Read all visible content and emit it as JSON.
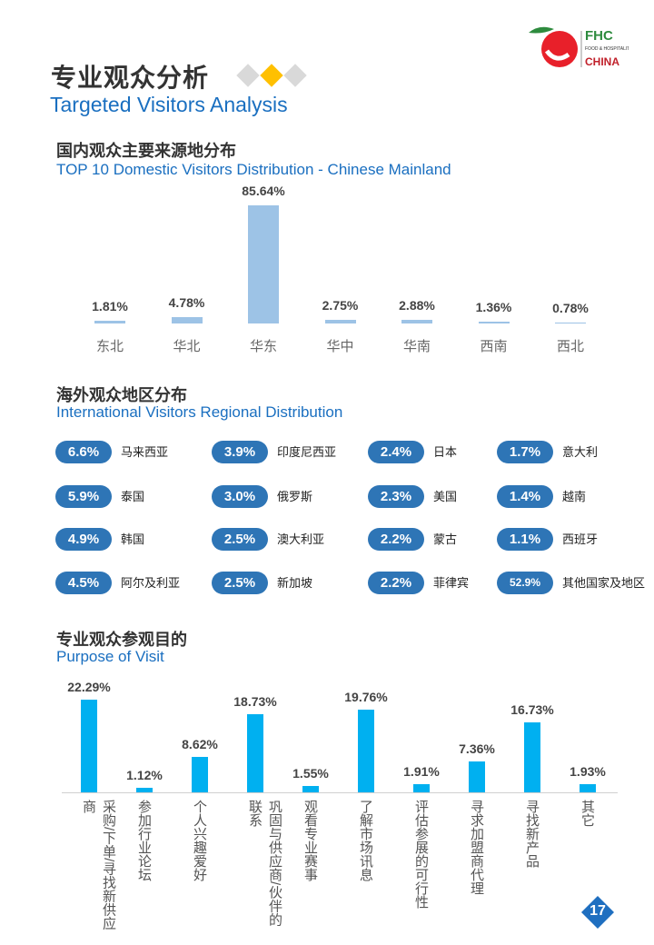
{
  "header": {
    "title_cn": "专业观众分析",
    "title_en": "Targeted Visitors Analysis",
    "logo_text": "FHC FOOD & HOSPITALITY CHINA"
  },
  "colors": {
    "accent": "#1a6fc0",
    "pill": "#2e75b6",
    "bar_domestic": "#9dc3e6",
    "bar_purpose": "#00b0f0",
    "diamond_active": "#ffc000",
    "diamond": "#d9d9d9"
  },
  "domestic": {
    "title_cn": "国内观众主要来源地分布",
    "title_en": "TOP 10 Domestic Visitors Distribution - Chinese Mainland"
  },
  "international": {
    "title_cn": "海外观众地区分布",
    "title_en": "International Visitors Regional Distribution",
    "items": [
      {
        "value": "6.6%",
        "label": "马来西亚"
      },
      {
        "value": "3.9%",
        "label": "印度尼西亚"
      },
      {
        "value": "2.4%",
        "label": "日本"
      },
      {
        "value": "1.7%",
        "label": "意大利"
      },
      {
        "value": "5.9%",
        "label": "泰国"
      },
      {
        "value": "3.0%",
        "label": "俄罗斯"
      },
      {
        "value": "2.3%",
        "label": "美国"
      },
      {
        "value": "1.4%",
        "label": "越南"
      },
      {
        "value": "4.9%",
        "label": "韩国"
      },
      {
        "value": "2.5%",
        "label": "澳大利亚"
      },
      {
        "value": "2.2%",
        "label": "蒙古"
      },
      {
        "value": "1.1%",
        "label": "西班牙"
      },
      {
        "value": "4.5%",
        "label": "阿尔及利亚"
      },
      {
        "value": "2.5%",
        "label": "新加坡"
      },
      {
        "value": "2.2%",
        "label": "菲律宾"
      },
      {
        "value": "52.9%",
        "label": "其他国家及地区"
      }
    ]
  },
  "purpose": {
    "title_cn": "专业观众参观目的",
    "title_en": "Purpose of Visit"
  },
  "page_number": "17",
  "chart_data": [
    {
      "type": "bar",
      "categories": [
        "东北",
        "华北",
        "华东",
        "华中",
        "华南",
        "西南",
        "西北"
      ],
      "values": [
        1.81,
        4.78,
        85.64,
        2.75,
        2.88,
        1.36,
        0.78
      ],
      "data_labels": [
        "1.81%",
        "4.78%",
        "85.64%",
        "2.75%",
        "2.88%",
        "1.36%",
        "0.78%"
      ],
      "unit": "%",
      "grid": false
    },
    {
      "type": "bar",
      "categories": [
        "采购/下单/寻找新供应商",
        "参加行业论坛",
        "个人兴趣爱好",
        "巩固与供应商/伙伴的联系",
        "观看专业赛事",
        "了解市场讯息",
        "评估参展的可行性",
        "寻求加盟商代理",
        "寻找新产品",
        "其它"
      ],
      "values": [
        22.29,
        1.12,
        8.62,
        18.73,
        1.55,
        19.76,
        1.91,
        7.36,
        16.73,
        1.93
      ],
      "data_labels": [
        "22.29%",
        "1.12%",
        "8.62%",
        "18.73%",
        "1.55%",
        "19.76%",
        "1.91%",
        "7.36%",
        "16.73%",
        "1.93%"
      ],
      "unit": "%",
      "grid": false
    }
  ]
}
